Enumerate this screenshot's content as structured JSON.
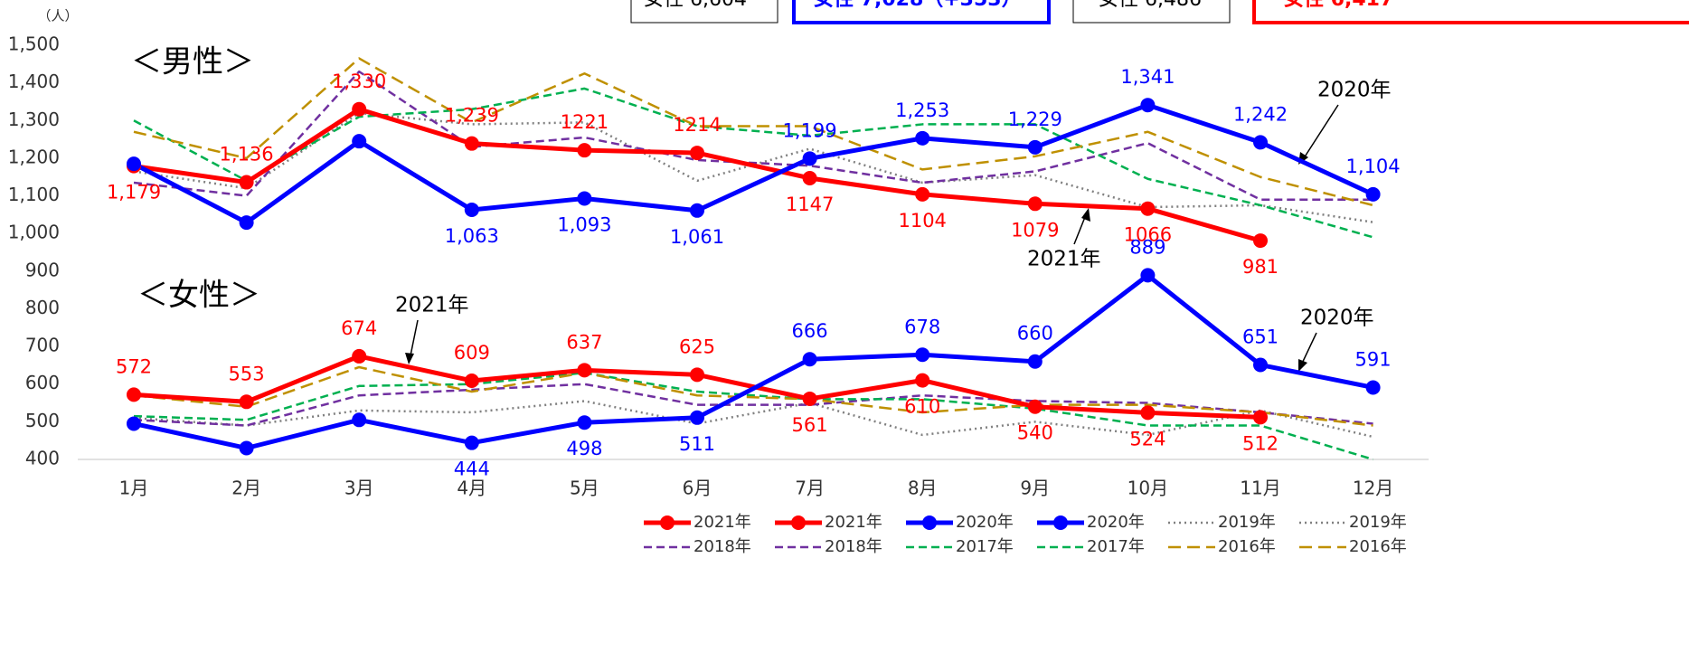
{
  "chart_data": {
    "type": "line",
    "y_unit": "（人）",
    "header_boxes": [
      "女性 6,604",
      "女性 7,028（+353）",
      "女性 6,486",
      "女性 6,417"
    ],
    "annotations": [
      "＜男性＞",
      "＜女性＞",
      "2020年",
      "2021年",
      "2021年",
      "2020年"
    ],
    "categories": [
      "1月",
      "2月",
      "3月",
      "4月",
      "5月",
      "6月",
      "7月",
      "8月",
      "9月",
      "10月",
      "11月",
      "12月"
    ],
    "ylim": [
      400,
      1500
    ],
    "yticks": [
      400,
      500,
      600,
      700,
      800,
      900,
      {
        "value": 1000,
        "label": "1,000"
      },
      {
        "value": 1100,
        "label": "1,100"
      },
      {
        "value": 1200,
        "label": "1,200"
      },
      {
        "value": 1300,
        "label": "1,300"
      },
      {
        "value": 1400,
        "label": "1,400"
      },
      {
        "value": 1500,
        "label": "1,500"
      }
    ],
    "grid": false,
    "series": [
      {
        "name": "2021年",
        "color": "#ff0000",
        "dash": "solid",
        "markers": true,
        "values": [
          1179,
          1136,
          1330,
          1239,
          1221,
          1214,
          1147,
          1104,
          1079,
          1066,
          981,
          null
        ],
        "value_labels": [
          "1,179",
          "1,136",
          "1,330",
          "1,239",
          "1221",
          "1214",
          "1147",
          "1104",
          "1079",
          "1066",
          "981",
          null
        ]
      },
      {
        "name": "2021年",
        "color": "#ff0000",
        "dash": "solid",
        "markers": true,
        "values": [
          572,
          553,
          674,
          609,
          637,
          625,
          561,
          610,
          540,
          524,
          512,
          null
        ]
      },
      {
        "name": "2020年",
        "color": "#0000ff",
        "dash": "solid",
        "markers": true,
        "values": [
          1185,
          1029,
          1245,
          1063,
          1093,
          1061,
          1199,
          1253,
          1229,
          1341,
          1242,
          1104
        ],
        "value_labels": [
          null,
          null,
          null,
          "1,063",
          "1,093",
          "1,061",
          "1,199",
          "1,253",
          "1,229",
          "1,341",
          "1,242",
          "1,104"
        ]
      },
      {
        "name": "2020年",
        "color": "#0000ff",
        "dash": "solid",
        "markers": true,
        "values": [
          495,
          430,
          505,
          444,
          498,
          511,
          666,
          678,
          660,
          889,
          651,
          591
        ],
        "value_labels": [
          null,
          null,
          null,
          "444",
          "498",
          "511",
          "666",
          "678",
          "660",
          "889",
          "651",
          "591"
        ]
      },
      {
        "name": "2019年",
        "color": "#808080",
        "dash": "dot",
        "markers": false,
        "values": [
          1165,
          1120,
          1320,
          1290,
          1295,
          1140,
          1225,
          1135,
          1155,
          1070,
          1075,
          1030
        ]
      },
      {
        "name": "2019年",
        "color": "#808080",
        "dash": "dot",
        "markers": false,
        "values": [
          510,
          490,
          530,
          525,
          555,
          495,
          550,
          465,
          500,
          465,
          530,
          460
        ]
      },
      {
        "name": "2018年",
        "color": "#7030a0",
        "dash": "dash",
        "markers": false,
        "values": [
          1135,
          1100,
          1430,
          1230,
          1255,
          1195,
          1180,
          1135,
          1165,
          1240,
          1090,
          1090
        ]
      },
      {
        "name": "2018年",
        "color": "#7030a0",
        "dash": "dash",
        "markers": false,
        "values": [
          505,
          490,
          570,
          585,
          600,
          545,
          545,
          570,
          555,
          550,
          525,
          495
        ]
      },
      {
        "name": "2017年",
        "color": "#00b050",
        "dash": "dash",
        "markers": false,
        "values": [
          1300,
          1140,
          1310,
          1330,
          1385,
          1285,
          1260,
          1290,
          1290,
          1145,
          1075,
          990
        ]
      },
      {
        "name": "2017年",
        "color": "#00b050",
        "dash": "dash",
        "markers": false,
        "values": [
          515,
          505,
          595,
          600,
          630,
          580,
          560,
          560,
          535,
          490,
          490,
          400
        ]
      },
      {
        "name": "2016年",
        "color": "#bf9000",
        "dash": "longdash",
        "markers": false,
        "values": [
          1270,
          1200,
          1465,
          1295,
          1425,
          1285,
          1285,
          1170,
          1205,
          1270,
          1150,
          1075
        ]
      },
      {
        "name": "2016年",
        "color": "#bf9000",
        "dash": "longdash",
        "markers": false,
        "values": [
          570,
          540,
          645,
          580,
          630,
          570,
          560,
          525,
          545,
          545,
          525,
          490
        ]
      }
    ]
  }
}
